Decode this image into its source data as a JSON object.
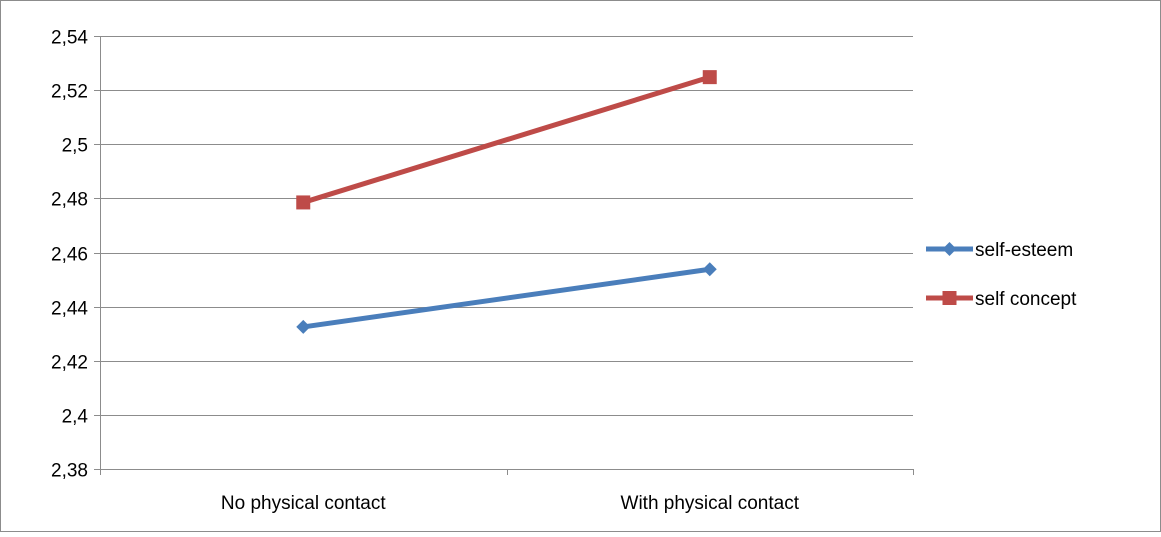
{
  "chart_data": {
    "type": "line",
    "categories": [
      "No physical contact",
      "With physical contact"
    ],
    "series": [
      {
        "name": "self-esteem",
        "values": [
          2.4325,
          2.4538
        ],
        "color": "#4a7ebb",
        "marker": "diamond"
      },
      {
        "name": "self concept",
        "values": [
          2.4785,
          2.5248
        ],
        "color": "#be4b48",
        "marker": "square"
      }
    ],
    "y_ticks": [
      "2,38",
      "2,4",
      "2,42",
      "2,44",
      "2,46",
      "2,48",
      "2,5",
      "2,52",
      "2,54"
    ],
    "ylim": [
      2.38,
      2.54
    ],
    "grid": true,
    "legend_position": "right"
  }
}
